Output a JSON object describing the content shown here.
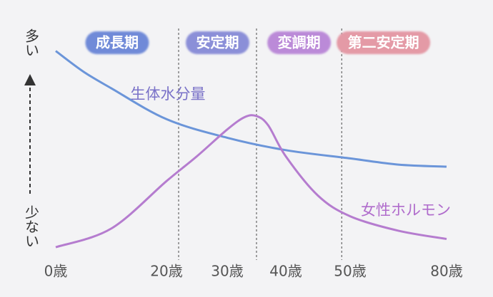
{
  "chart_data": {
    "type": "line",
    "y_high_label": "多い",
    "y_low_label": "少ない",
    "xticks": [
      {
        "value": 0,
        "label": "0歳"
      },
      {
        "value": 20,
        "label": "20歳"
      },
      {
        "value": 30,
        "label": "30歳"
      },
      {
        "value": 40,
        "label": "40歳"
      },
      {
        "value": 50,
        "label": "50歳"
      },
      {
        "value": 80,
        "label": "80歳"
      }
    ],
    "xlim": [
      0,
      80
    ],
    "ylim": [
      0,
      100
    ],
    "phases": [
      {
        "label": "成長期",
        "color": "#6f8ad8",
        "end": 22
      },
      {
        "label": "安定期",
        "color": "#8b8fd8",
        "end": 35
      },
      {
        "label": "変調期",
        "color": "#bb8ad8",
        "end": 48.7
      },
      {
        "label": "第二安定期",
        "color": "#e49aa6"
      }
    ],
    "series": [
      {
        "name": "生体水分量",
        "color": "#6b95d9",
        "label_color": "#7a72c8",
        "x": [
          0,
          5,
          10,
          20,
          30,
          40,
          50,
          65,
          80
        ],
        "values": [
          96,
          86,
          78,
          63,
          54,
          48,
          44,
          41,
          40
        ]
      },
      {
        "name": "女性ホルモン",
        "color": "#b57ccf",
        "label_color": "#b06ccc",
        "x": [
          0,
          10,
          20,
          25,
          30,
          33,
          35,
          37,
          40,
          45,
          50,
          65,
          80
        ],
        "values": [
          1,
          10,
          33,
          45,
          58,
          64,
          64.5,
          60,
          45,
          26,
          16,
          9,
          5
        ]
      }
    ]
  }
}
